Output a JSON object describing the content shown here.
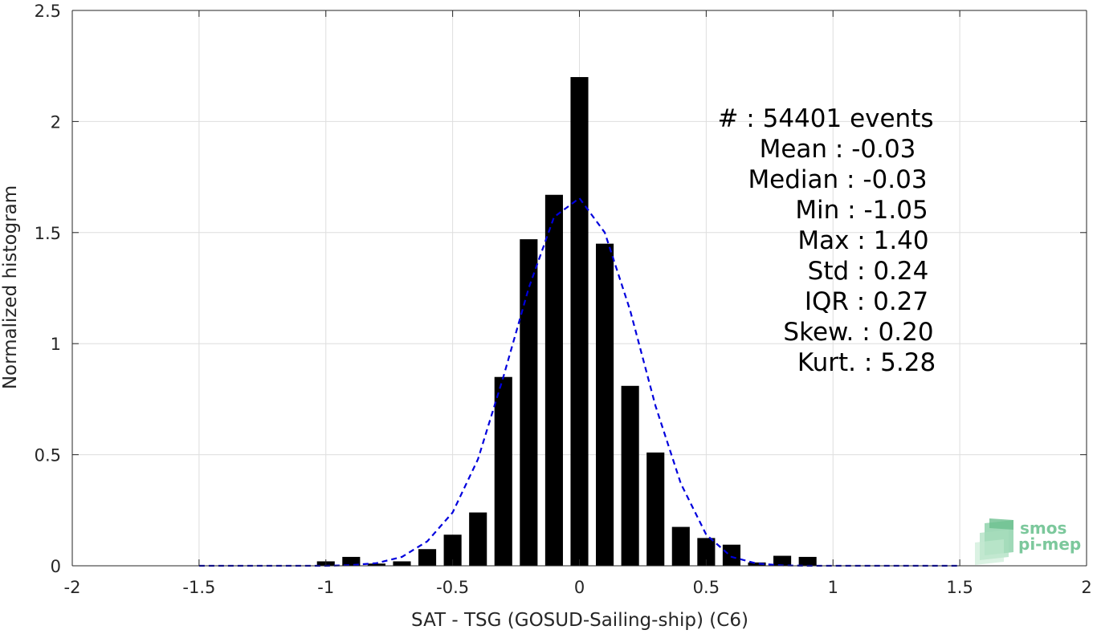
{
  "chart_data": {
    "type": "bar",
    "xlabel": "SAT - TSG (GOSUD-Sailing-ship) (C6)",
    "ylabel": "Normalized histogram",
    "xlim": [
      -2,
      2
    ],
    "ylim": [
      0,
      2.5
    ],
    "xticks": [
      -2,
      -1.5,
      -1,
      -0.5,
      0,
      0.5,
      1,
      1.5,
      2
    ],
    "xtick_labels": [
      "-2",
      "-1.5",
      "-1",
      "-0.5",
      "0",
      "0.5",
      "1",
      "1.5",
      "2"
    ],
    "yticks": [
      0,
      0.5,
      1,
      1.5,
      2,
      2.5
    ],
    "ytick_labels": [
      "0",
      "0.5",
      "1",
      "1.5",
      "2",
      "2.5"
    ],
    "grid": true,
    "bar_color": "#000000",
    "bars": [
      {
        "x": -1.0,
        "y": 0.02
      },
      {
        "x": -0.9,
        "y": 0.04
      },
      {
        "x": -0.8,
        "y": 0.01
      },
      {
        "x": -0.7,
        "y": 0.02
      },
      {
        "x": -0.6,
        "y": 0.075
      },
      {
        "x": -0.5,
        "y": 0.14
      },
      {
        "x": -0.4,
        "y": 0.24
      },
      {
        "x": -0.3,
        "y": 0.85
      },
      {
        "x": -0.2,
        "y": 1.47
      },
      {
        "x": -0.1,
        "y": 1.67
      },
      {
        "x": 0.0,
        "y": 2.2
      },
      {
        "x": 0.1,
        "y": 1.45
      },
      {
        "x": 0.2,
        "y": 0.81
      },
      {
        "x": 0.3,
        "y": 0.51
      },
      {
        "x": 0.4,
        "y": 0.175
      },
      {
        "x": 0.5,
        "y": 0.125
      },
      {
        "x": 0.6,
        "y": 0.095
      },
      {
        "x": 0.7,
        "y": 0.015
      },
      {
        "x": 0.8,
        "y": 0.045
      },
      {
        "x": 0.9,
        "y": 0.04
      }
    ],
    "fit_curve": {
      "style": "dashed",
      "color": "#0000dd",
      "x": [
        -1.5,
        -1.4,
        -1.3,
        -1.2,
        -1.1,
        -1.0,
        -0.9,
        -0.8,
        -0.7,
        -0.6,
        -0.5,
        -0.4,
        -0.3,
        -0.2,
        -0.1,
        0.0,
        0.1,
        0.2,
        0.3,
        0.4,
        0.5,
        0.6,
        0.7,
        0.8,
        0.9,
        1.0,
        1.1,
        1.2,
        1.3,
        1.4,
        1.5
      ],
      "y": [
        0.0,
        0.0,
        0.0,
        0.0,
        0.0,
        0.0,
        0.003,
        0.012,
        0.04,
        0.11,
        0.24,
        0.48,
        0.85,
        1.25,
        1.57,
        1.655,
        1.5,
        1.15,
        0.72,
        0.37,
        0.14,
        0.04,
        0.01,
        0.002,
        0.0,
        0.0,
        0.0,
        0.0,
        0.0,
        0.0,
        0.0
      ]
    },
    "stats": [
      {
        "label": "#",
        "value": ": 54401 events"
      },
      {
        "label": "Mean",
        "value": ": -0.03"
      },
      {
        "label": "Median",
        "value": ": -0.03"
      },
      {
        "label": "Min",
        "value": ": -1.05"
      },
      {
        "label": "Max",
        "value": ": 1.40"
      },
      {
        "label": "Std",
        "value": ": 0.24"
      },
      {
        "label": "IQR",
        "value": ": 0.27"
      },
      {
        "label": "Skew.",
        "value": ": 0.20"
      },
      {
        "label": "Kurt.",
        "value": ": 5.28"
      }
    ]
  },
  "logo": {
    "line1": "smos",
    "line2": "pi-mep",
    "color": "#6cbf8f"
  }
}
